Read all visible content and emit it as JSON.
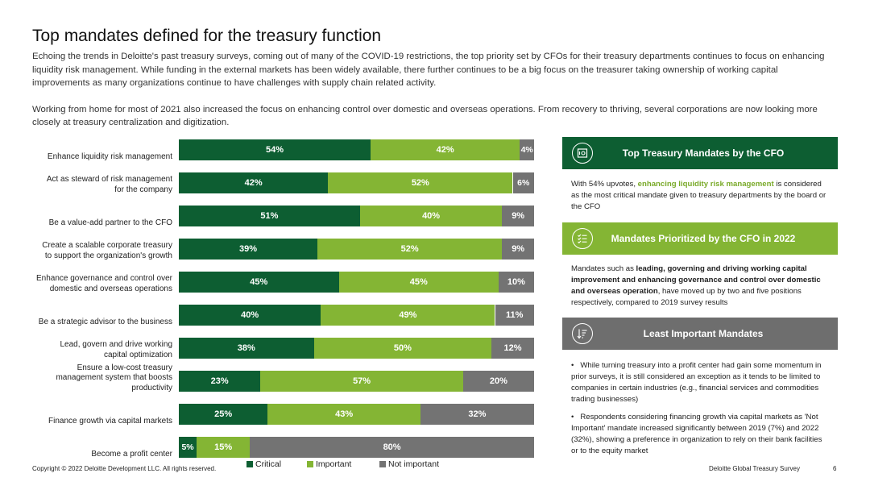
{
  "header": {
    "title": "Top mandates defined for the treasury function",
    "paragraph1": "Echoing the trends in Deloitte's past treasury surveys, coming out of many of the COVID-19 restrictions, the top priority set by CFOs for their treasury departments continues to focus on enhancing liquidity risk management. While funding in the external markets has been widely available, there further continues to be a big focus on the treasurer taking ownership of working capital improvements as many organizations continue to have challenges with supply chain related activity.",
    "paragraph2": "Working from home for most of 2021 also increased the focus on enhancing control over domestic and overseas operations. From recovery to thriving, several corporations are now looking more closely at treasury centralization and digitization."
  },
  "chart_data": {
    "type": "bar",
    "orientation": "horizontal",
    "stacked": true,
    "categories": [
      "Enhance liquidity risk management",
      "Act as steward of risk management for the company",
      "Be a value-add partner to the CFO",
      "Create a scalable corporate treasury to support the organization's growth",
      "Enhance governance and control over domestic and overseas operations",
      "Be a strategic advisor to the business",
      "Lead, govern and drive working capital optimization",
      "Ensure a low-cost treasury management system that boosts productivity",
      "Finance growth via capital markets",
      "Become a profit center"
    ],
    "category_lines": [
      [
        "Enhance liquidity risk management"
      ],
      [
        "Act as steward of risk management",
        "for the company"
      ],
      [
        "Be a value-add partner to the CFO"
      ],
      [
        "Create a scalable corporate treasury",
        "to support the organization's growth"
      ],
      [
        "Enhance governance and control over",
        "domestic and overseas operations"
      ],
      [
        "Be a strategic advisor to the business"
      ],
      [
        "Lead, govern and drive working",
        "capital optimization"
      ],
      [
        "Ensure a low-cost treasury",
        "management system that boosts",
        "productivity"
      ],
      [
        "Finance growth via capital markets"
      ],
      [
        "Become a profit center"
      ]
    ],
    "series": [
      {
        "name": "Critical",
        "values": [
          54,
          42,
          51,
          39,
          45,
          40,
          38,
          23,
          25,
          5
        ],
        "color": "#0d5e32"
      },
      {
        "name": "Important",
        "values": [
          42,
          52,
          40,
          52,
          45,
          49,
          50,
          57,
          43,
          15
        ],
        "color": "#84b534"
      },
      {
        "name": "Not important",
        "values": [
          4,
          6,
          9,
          9,
          10,
          11,
          12,
          20,
          32,
          80
        ],
        "color": "#737373"
      }
    ],
    "value_suffix": "%",
    "xlim": [
      0,
      100
    ],
    "grid": false,
    "legend_position": "bottom"
  },
  "panels": {
    "top_mandates": {
      "title": "Top Treasury Mandates by the CFO",
      "icon": "safe-icon",
      "text_before": "With 54% upvotes, ",
      "text_highlight": "enhancing liquidity risk management",
      "text_after": " is considered as the most critical mandate given to treasury departments by the board or the CFO"
    },
    "prioritized": {
      "title": "Mandates Prioritized by the CFO in 2022",
      "icon": "checklist-icon",
      "text_before": "Mandates such as ",
      "text_bold": "leading, governing and driving working capital improvement and enhancing governance and control over domestic and overseas operation",
      "text_after": ", have moved up by two and five positions respectively, compared to 2019 survey results"
    },
    "least_important": {
      "title": "Least Important Mandates",
      "icon": "sort-descending-icon",
      "bullets": [
        "While turning treasury into a profit center had gain some momentum in prior surveys, it is still considered an exception as it tends to be limited to companies in certain industries (e.g., financial services and commodities trading businesses)",
        "Respondents considering financing growth via capital markets as 'Not Important' mandate increased significantly between 2019 (7%) and 2022 (32%), showing a preference in organization to rely on their bank facilities or to the equity market"
      ]
    }
  },
  "footer": {
    "copyright": "Copyright © 2022 Deloitte Development LLC. All rights reserved.",
    "survey": "Deloitte Global Treasury Survey",
    "page": "6"
  },
  "colors": {
    "critical": "#0d5e32",
    "important": "#84b534",
    "not_important": "#737373",
    "highlight": "#7aaa2a"
  }
}
